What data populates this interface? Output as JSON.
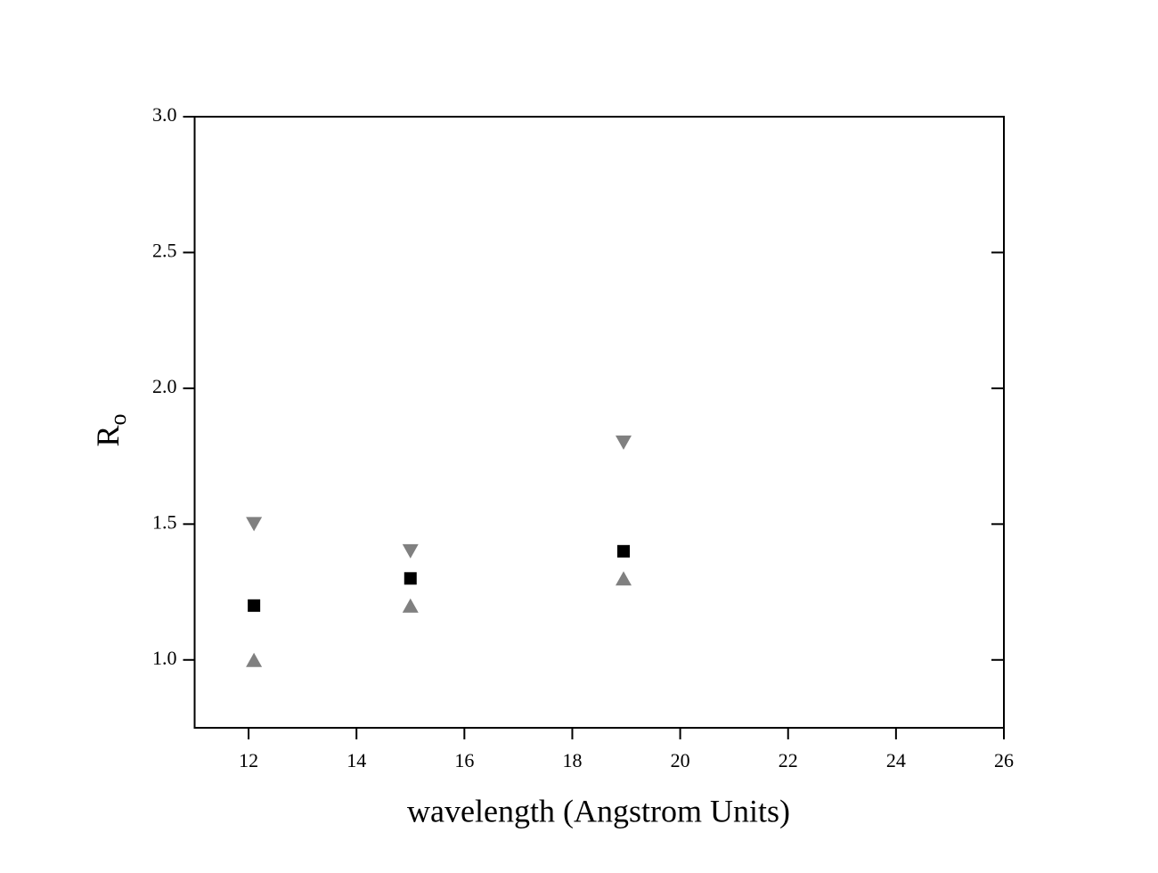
{
  "chart_data": {
    "type": "scatter",
    "xlabel": "wavelength (Angstrom Units)",
    "ylabel": "R",
    "ylabel_sub": "o",
    "xlim": [
      11,
      26
    ],
    "xticks": [
      12,
      14,
      16,
      18,
      20,
      22,
      24,
      26
    ],
    "ylim": [
      0.75,
      3.0
    ],
    "yticks": [
      {
        "value": 1.0,
        "label": "1.0"
      },
      1.5,
      {
        "value": 2.0,
        "label": "2.0"
      },
      2.5,
      {
        "value": 3.0,
        "label": "3.0"
      }
    ],
    "series": [
      {
        "color": "#000000",
        "marker": "square",
        "x": [
          12.1,
          15.0,
          18.95
        ],
        "values": [
          1.2,
          1.3,
          1.4
        ]
      },
      {
        "color": "#808080",
        "marker": "triangle-down",
        "x": [
          12.1,
          15.0,
          18.95
        ],
        "values": [
          1.5,
          1.4,
          1.8
        ]
      },
      {
        "color": "#808080",
        "marker": "triangle-up",
        "x": [
          12.1,
          15.0,
          18.95
        ],
        "values": [
          1.0,
          1.2,
          1.3
        ]
      }
    ]
  }
}
